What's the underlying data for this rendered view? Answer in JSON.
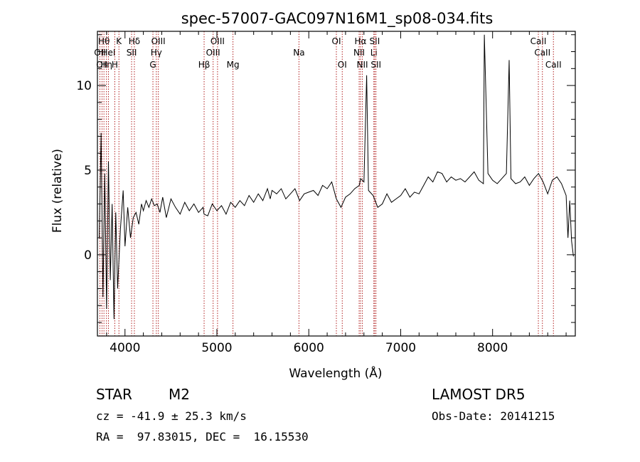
{
  "chart_data": {
    "type": "line",
    "title": "spec-57007-GAC097N16M1_sp08-034.fits",
    "xlabel": "Wavelength (Å)",
    "ylabel": "Flux (relative)",
    "xlim": [
      3700,
      8900
    ],
    "ylim": [
      -4.8,
      13.2
    ],
    "xticks": [
      4000,
      5000,
      6000,
      7000,
      8000
    ],
    "yticks": [
      0,
      5,
      10
    ],
    "grid": false,
    "series": [
      {
        "x": [
          3720,
          3740,
          3760,
          3780,
          3800,
          3820,
          3840,
          3860,
          3880,
          3900,
          3920,
          3950,
          3980,
          4000,
          4030,
          4060,
          4090,
          4120,
          4150,
          4180,
          4200,
          4230,
          4260,
          4290,
          4320,
          4350,
          4380,
          4410,
          4450,
          4500,
          4550,
          4600,
          4650,
          4700,
          4750,
          4800,
          4850,
          4860,
          4900,
          4950,
          5000,
          5050,
          5100,
          5150,
          5200,
          5250,
          5300,
          5350,
          5400,
          5450,
          5500,
          5550,
          5580,
          5600,
          5650,
          5700,
          5750,
          5800,
          5850,
          5900,
          5950,
          6000,
          6050,
          6100,
          6150,
          6200,
          6250,
          6300,
          6350,
          6400,
          6450,
          6500,
          6550,
          6563,
          6600,
          6630,
          6650,
          6700,
          6750,
          6800,
          6850,
          6900,
          6950,
          7000,
          7050,
          7100,
          7150,
          7200,
          7250,
          7300,
          7350,
          7400,
          7450,
          7500,
          7550,
          7600,
          7650,
          7700,
          7750,
          7800,
          7850,
          7900,
          7910,
          7950,
          8000,
          8050,
          8100,
          8150,
          8180,
          8200,
          8250,
          8300,
          8350,
          8400,
          8450,
          8500,
          8550,
          8600,
          8650,
          8700,
          8750,
          8800,
          8820,
          8840,
          8860,
          8880
        ],
        "values": [
          1.0,
          7.2,
          -2.5,
          4.8,
          -3.2,
          5.5,
          -1.5,
          3.0,
          -3.8,
          2.5,
          -2.0,
          1.5,
          3.8,
          0.5,
          2.8,
          1.0,
          2.2,
          2.5,
          1.8,
          3.0,
          2.6,
          3.2,
          2.8,
          3.3,
          2.9,
          3.0,
          2.5,
          3.4,
          2.2,
          3.3,
          2.8,
          2.4,
          3.1,
          2.6,
          3.0,
          2.5,
          2.8,
          2.4,
          2.3,
          3.0,
          2.6,
          2.9,
          2.4,
          3.1,
          2.8,
          3.2,
          2.9,
          3.5,
          3.1,
          3.6,
          3.2,
          3.9,
          3.3,
          3.8,
          3.6,
          3.9,
          3.3,
          3.6,
          3.9,
          3.2,
          3.6,
          3.7,
          3.8,
          3.5,
          4.1,
          3.9,
          4.3,
          3.3,
          2.8,
          3.4,
          3.6,
          3.9,
          4.1,
          4.5,
          4.3,
          10.6,
          3.8,
          3.5,
          2.8,
          3.0,
          3.6,
          3.1,
          3.3,
          3.5,
          3.9,
          3.4,
          3.7,
          3.6,
          4.1,
          4.6,
          4.3,
          4.9,
          4.8,
          4.3,
          4.6,
          4.4,
          4.5,
          4.3,
          4.6,
          4.9,
          4.4,
          4.2,
          13.0,
          4.8,
          4.4,
          4.2,
          4.5,
          4.8,
          11.5,
          4.5,
          4.2,
          4.3,
          4.6,
          4.1,
          4.5,
          4.8,
          4.3,
          3.6,
          4.4,
          4.6,
          4.2,
          3.5,
          1.0,
          3.2,
          0.8,
          -0.1
        ]
      }
    ],
    "line_markers": [
      {
        "wl": 3727,
        "label": "OII",
        "row": 2
      },
      {
        "wl": 3750,
        "label": "OII",
        "row": 3
      },
      {
        "wl": 3771,
        "label": "Hθ",
        "row": 1
      },
      {
        "wl": 3798,
        "label": "Hη",
        "row": 3
      },
      {
        "wl": 3820,
        "label": "HeI",
        "row": 2
      },
      {
        "wl": 3889,
        "label": "H",
        "row": 3
      },
      {
        "wl": 3934,
        "label": "K",
        "row": 1
      },
      {
        "wl": 4102,
        "label": "Hδ",
        "row": 1
      },
      {
        "wl": 4072,
        "label": "SII",
        "row": 2
      },
      {
        "wl": 4304,
        "label": "G",
        "row": 3
      },
      {
        "wl": 4341,
        "label": "Hγ",
        "row": 2
      },
      {
        "wl": 4363,
        "label": "OIII",
        "row": 1
      },
      {
        "wl": 4861,
        "label": "Hβ",
        "row": 3
      },
      {
        "wl": 4959,
        "label": "OIII",
        "row": 2
      },
      {
        "wl": 5007,
        "label": "OIII",
        "row": 1
      },
      {
        "wl": 5175,
        "label": "Mg",
        "row": 3
      },
      {
        "wl": 5893,
        "label": "Na",
        "row": 2
      },
      {
        "wl": 6300,
        "label": "OI",
        "row": 1
      },
      {
        "wl": 6364,
        "label": "OI",
        "row": 3
      },
      {
        "wl": 6548,
        "label": "NII",
        "row": 2
      },
      {
        "wl": 6563,
        "label": "Hα",
        "row": 1
      },
      {
        "wl": 6583,
        "label": "NII",
        "row": 3
      },
      {
        "wl": 6708,
        "label": "Li",
        "row": 2
      },
      {
        "wl": 6717,
        "label": "SII",
        "row": 1
      },
      {
        "wl": 6731,
        "label": "SII",
        "row": 3
      },
      {
        "wl": 8498,
        "label": "CaII",
        "row": 1
      },
      {
        "wl": 8542,
        "label": "CaII",
        "row": 2
      },
      {
        "wl": 8662,
        "label": "CaII",
        "row": 3
      }
    ]
  },
  "info": {
    "object_class": "STAR",
    "subclass": "M2",
    "survey": "LAMOST DR5",
    "cz_line": "cz = -41.9 ± 25.3 km/s",
    "obs_date": "Obs-Date: 20141215",
    "coords": "RA =  97.83015, DEC =  16.15530"
  }
}
